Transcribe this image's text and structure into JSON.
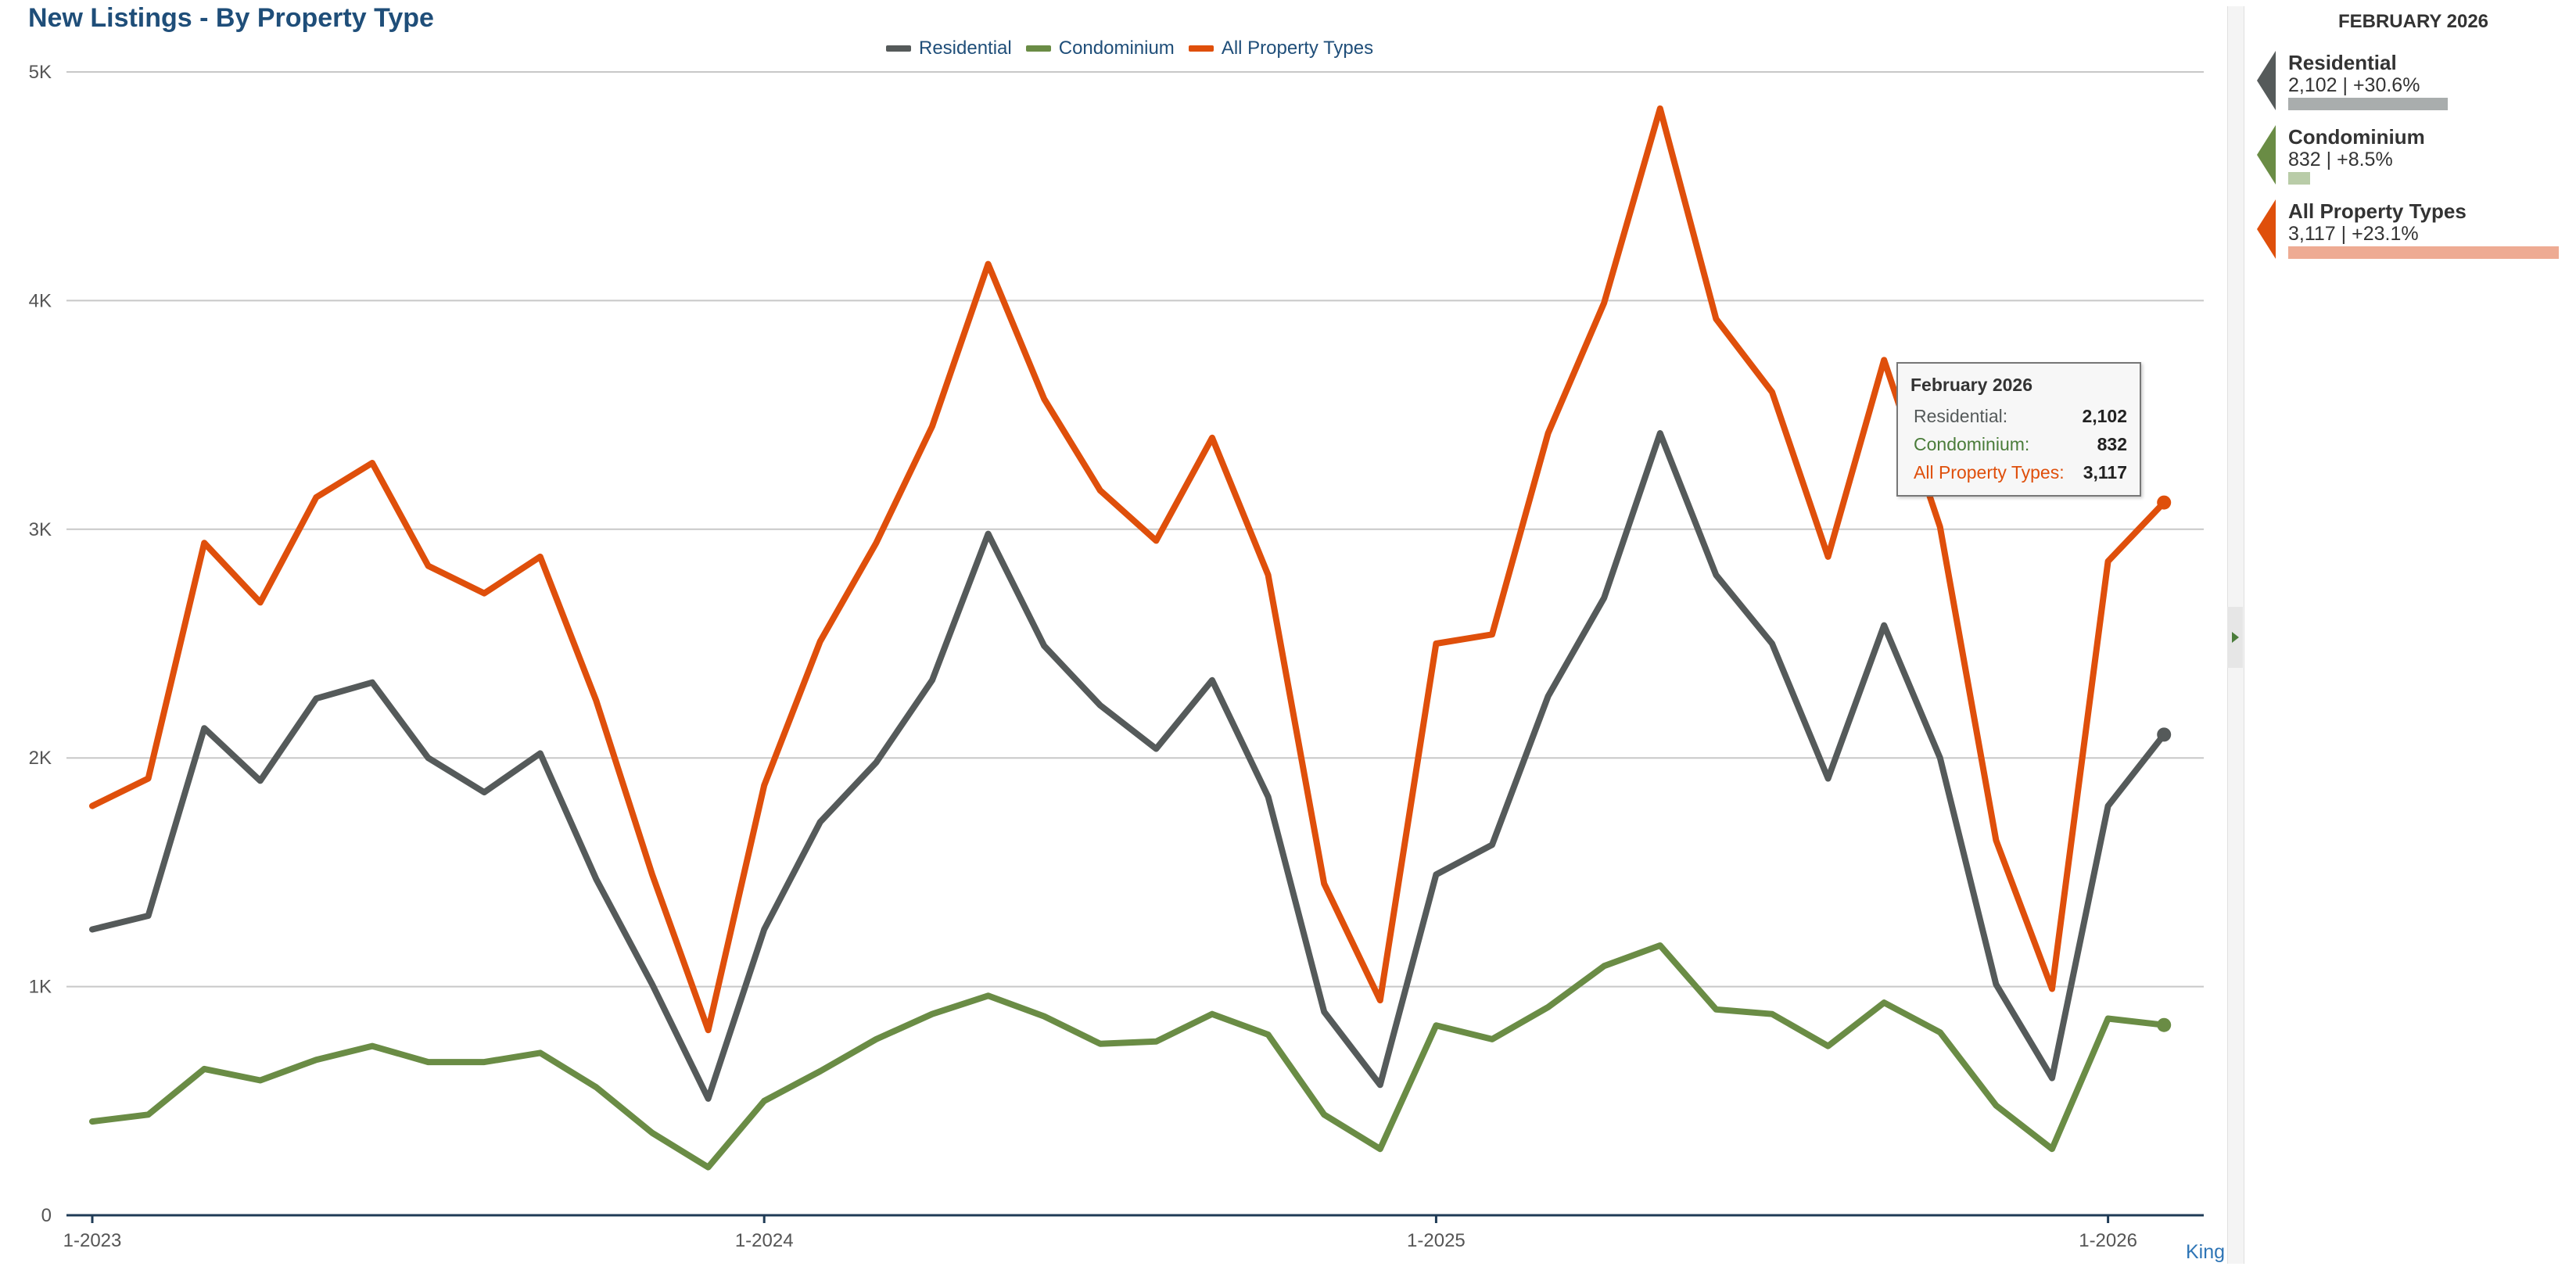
{
  "title": "New Listings - By Property Type",
  "legend": [
    {
      "label": "Residential",
      "color": "#555a5a"
    },
    {
      "label": "Condominium",
      "color": "#6a8c45"
    },
    {
      "label": "All Property Types",
      "color": "#df4f0b"
    }
  ],
  "chart_data": {
    "type": "line",
    "x": [
      "1-2023",
      "2-2023",
      "3-2023",
      "4-2023",
      "5-2023",
      "6-2023",
      "7-2023",
      "8-2023",
      "9-2023",
      "10-2023",
      "11-2023",
      "12-2023",
      "1-2024",
      "2-2024",
      "3-2024",
      "4-2024",
      "5-2024",
      "6-2024",
      "7-2024",
      "8-2024",
      "9-2024",
      "10-2024",
      "11-2024",
      "12-2024",
      "1-2025",
      "2-2025",
      "3-2025",
      "4-2025",
      "5-2025",
      "6-2025",
      "7-2025",
      "8-2025",
      "9-2025",
      "10-2025",
      "11-2025",
      "12-2025",
      "1-2026",
      "2-2026"
    ],
    "x_tick_labels": [
      "1-2023",
      "1-2024",
      "1-2025",
      "1-2026"
    ],
    "y_tick_labels": [
      "0",
      "1K",
      "2K",
      "3K",
      "4K",
      "5K"
    ],
    "ylim": [
      0,
      5000
    ],
    "grid": true,
    "legend_position": "top-center",
    "series": [
      {
        "name": "Residential",
        "color": "#555a5a",
        "values": [
          1250,
          1310,
          2130,
          1900,
          2260,
          2330,
          2000,
          1850,
          2020,
          1470,
          1010,
          510,
          1250,
          1720,
          1980,
          2340,
          2980,
          2490,
          2230,
          2040,
          2340,
          1830,
          890,
          570,
          1490,
          1620,
          2270,
          2700,
          3420,
          2800,
          2500,
          1910,
          2580,
          2000,
          1010,
          600,
          1790,
          2102
        ]
      },
      {
        "name": "Condominium",
        "color": "#6a8c45",
        "values": [
          410,
          440,
          640,
          590,
          680,
          740,
          670,
          670,
          710,
          560,
          360,
          210,
          500,
          630,
          770,
          880,
          960,
          870,
          750,
          760,
          880,
          790,
          440,
          290,
          830,
          770,
          910,
          1090,
          1180,
          900,
          880,
          740,
          930,
          800,
          480,
          290,
          860,
          832
        ]
      },
      {
        "name": "All Property Types",
        "color": "#df4f0b",
        "values": [
          1790,
          1910,
          2940,
          2680,
          3140,
          3290,
          2840,
          2720,
          2880,
          2250,
          1490,
          810,
          1880,
          2510,
          2940,
          3450,
          4160,
          3570,
          3170,
          2950,
          3400,
          2800,
          1450,
          940,
          2500,
          2540,
          3420,
          3990,
          4840,
          3920,
          3600,
          2880,
          3740,
          3010,
          1640,
          990,
          2860,
          3117
        ]
      }
    ]
  },
  "tooltip": {
    "title": "February 2026",
    "rows": [
      {
        "label": "Residential:",
        "value": "2,102",
        "color": "#555a5a"
      },
      {
        "label": "Condominium:",
        "value": "832",
        "color": "#4a7c3a"
      },
      {
        "label": "All Property Types:",
        "value": "3,117",
        "color": "#df4f0b"
      }
    ]
  },
  "side_panel": {
    "header": "FEBRUARY 2026",
    "items": [
      {
        "label": "Residential",
        "value": "2,102 | +30.6%",
        "arrow_color": "#555a5a",
        "bar_color": "#a9adad",
        "bar_fraction": 0.306
      },
      {
        "label": "Condominium",
        "value": "832 | +8.5%",
        "arrow_color": "#6a8c45",
        "bar_color": "#b9cca8",
        "bar_fraction": 0.085
      },
      {
        "label": "All Property Types",
        "value": "3,117 | +23.1%",
        "arrow_color": "#df4f0b",
        "bar_color": "#eeab93",
        "bar_fraction": 1.0
      }
    ]
  },
  "footer_link": "King"
}
